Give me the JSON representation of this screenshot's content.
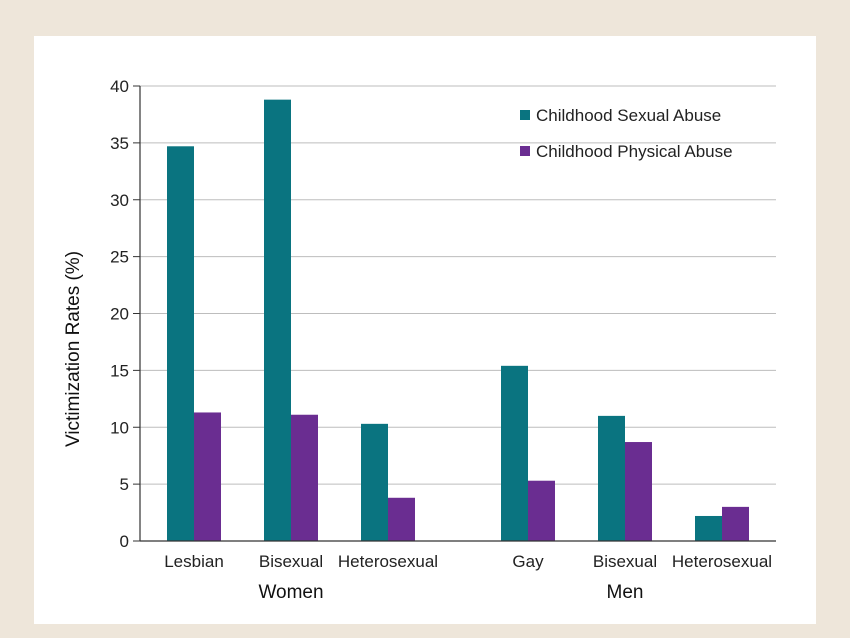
{
  "chart_data": {
    "type": "bar",
    "title": "",
    "ylabel": "Victimization Rates (%)",
    "xlabel": "",
    "ylim": [
      0,
      40
    ],
    "yticks": [
      0,
      5,
      10,
      15,
      20,
      25,
      30,
      35,
      40
    ],
    "grid": "horizontal",
    "legend_position": "top-right",
    "groups": [
      {
        "label": "Women",
        "categories": [
          "Lesbian",
          "Bisexual",
          "Heterosexual"
        ]
      },
      {
        "label": "Men",
        "categories": [
          "Gay",
          "Bisexual",
          "Heterosexual"
        ]
      }
    ],
    "categories": [
      "Lesbian",
      "Bisexual",
      "Heterosexual",
      "Gay",
      "Bisexual",
      "Heterosexual"
    ],
    "series": [
      {
        "name": "Childhood Sexual Abuse",
        "color": "#0A7480",
        "values": [
          34.7,
          38.8,
          10.3,
          15.4,
          11.0,
          2.2
        ]
      },
      {
        "name": "Childhood Physical Abuse",
        "color": "#6A2D91",
        "values": [
          11.3,
          11.1,
          3.8,
          5.3,
          8.7,
          3.0
        ]
      }
    ]
  }
}
